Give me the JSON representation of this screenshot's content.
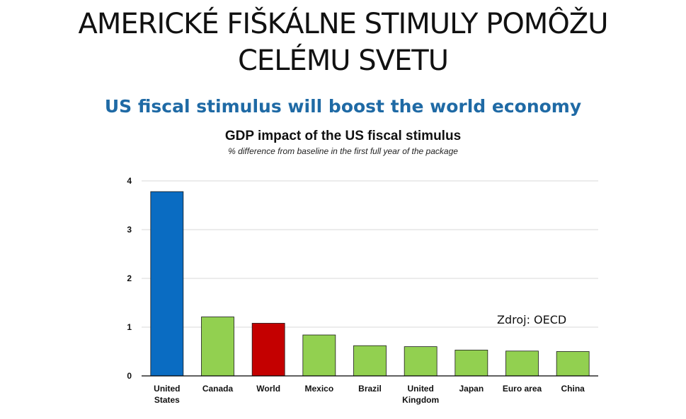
{
  "slide": {
    "title_lines": [
      "AMERICKÉ FIŠKÁLNE STIMULY POMÔŽU",
      "CELÉMU SVETU"
    ],
    "subtitle": "US fiscal stimulus will boost the world economy",
    "source": "Zdroj: OECD"
  },
  "colors": {
    "us_bar": "#0a6cc2",
    "world_bar": "#c40000",
    "other_bar": "#92d050",
    "subtitle": "#1f6aa5"
  },
  "chart_data": {
    "type": "bar",
    "title": "GDP impact of the US fiscal stimulus",
    "subtitle": "% difference from baseline in the first full year of the package",
    "categories": [
      [
        "United",
        "States"
      ],
      [
        "Canada"
      ],
      [
        "World"
      ],
      [
        "Mexico"
      ],
      [
        "Brazil"
      ],
      [
        "United",
        "Kingdom"
      ],
      [
        "Japan"
      ],
      [
        "Euro area"
      ],
      [
        "China"
      ]
    ],
    "values": [
      3.78,
      1.21,
      1.08,
      0.84,
      0.62,
      0.6,
      0.53,
      0.51,
      0.5
    ],
    "bar_colors": [
      "#0a6cc2",
      "#92d050",
      "#c40000",
      "#92d050",
      "#92d050",
      "#92d050",
      "#92d050",
      "#92d050",
      "#92d050"
    ],
    "ylim": [
      0,
      4
    ],
    "yticks": [
      0,
      1,
      2,
      3,
      4
    ],
    "xlabel": "",
    "ylabel": "",
    "grid": true,
    "legend": "none"
  }
}
